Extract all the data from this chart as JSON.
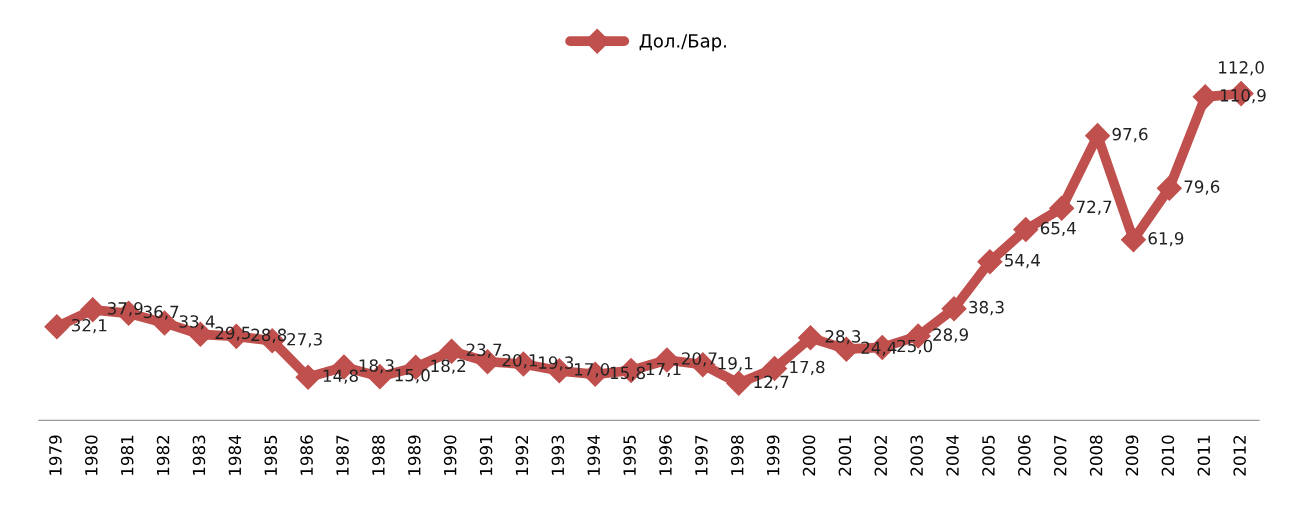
{
  "chart_data": {
    "type": "line",
    "categories": [
      "1979",
      "1980",
      "1981",
      "1982",
      "1983",
      "1984",
      "1985",
      "1986",
      "1987",
      "1988",
      "1989",
      "1990",
      "1991",
      "1992",
      "1993",
      "1994",
      "1995",
      "1996",
      "1997",
      "1998",
      "1999",
      "2000",
      "2001",
      "2002",
      "2003",
      "2004",
      "2005",
      "2006",
      "2007",
      "2008",
      "2009",
      "2010",
      "2011",
      "2012"
    ],
    "series": [
      {
        "name": "Дол./Бар.",
        "color": "#c0504d",
        "values": [
          32.1,
          37.9,
          36.7,
          33.4,
          29.5,
          28.8,
          27.3,
          14.8,
          18.3,
          15.0,
          18.2,
          23.7,
          20.1,
          19.3,
          17.0,
          15.8,
          17.1,
          20.7,
          19.1,
          12.7,
          17.8,
          28.3,
          24.4,
          25.0,
          28.9,
          38.3,
          54.4,
          65.4,
          72.7,
          97.6,
          61.9,
          79.6,
          110.9,
          112.0
        ],
        "value_labels": [
          "32,1",
          "37,9",
          "36,7",
          "33,4",
          "29,5",
          "28,8",
          "27,3",
          "14,8",
          "18,3",
          "15,0",
          "18,2",
          "23,7",
          "20,1",
          "19,3",
          "17,0",
          "15,8",
          "17,1",
          "20,7",
          "19,1",
          "12,7",
          "17,8",
          "28,3",
          "24,4",
          "25,0",
          "28,9",
          "38,3",
          "54,4",
          "65,4",
          "72,7",
          "97,6",
          "61,9",
          "79,6",
          "110,9",
          "112,0"
        ]
      }
    ],
    "marker": "diamond",
    "line_style": "solid",
    "legend": "top",
    "grid": false
  }
}
